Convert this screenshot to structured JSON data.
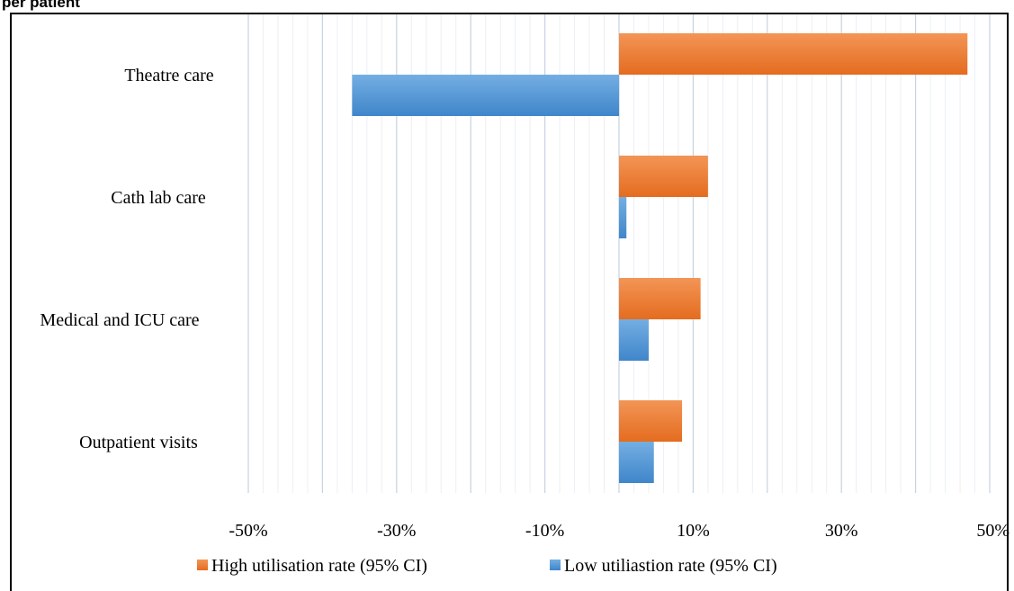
{
  "chart_data": {
    "type": "bar",
    "orientation": "horizontal",
    "title": "per patient",
    "categories": [
      "Theatre care",
      "Cath lab care",
      "Medical and ICU care",
      "Outpatient visits"
    ],
    "series": [
      {
        "name": "High utilisation rate (95% CI)",
        "color": "#ed7d31",
        "values": [
          0.47,
          0.12,
          0.11,
          0.085
        ]
      },
      {
        "name": "Low utiliastion rate (95% CI)",
        "color": "#5b9bd5",
        "values": [
          -0.36,
          0.01,
          0.04,
          0.047
        ]
      }
    ],
    "x_ticks": [
      "-50%",
      "-30%",
      "-10%",
      "10%",
      "30%",
      "50%"
    ],
    "xlim": [
      -0.5,
      0.5
    ],
    "grid": true,
    "legend_position": "bottom"
  }
}
